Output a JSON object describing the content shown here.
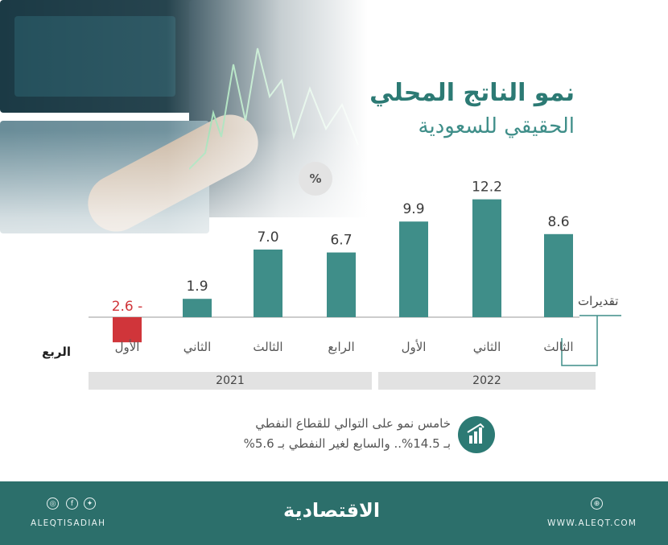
{
  "colors": {
    "bar": "#3f8e89",
    "negative_bar": "#d0353a",
    "title": "#2c7a74",
    "footer": "#2c6f6b",
    "negative_label": "#d0353a"
  },
  "title": {
    "line1": "نمو الناتج المحلي",
    "line2": "الحقيقي للسعودية"
  },
  "unit_badge": "%",
  "estimates_label": "تقديرات",
  "quarter_axis_title": "الربع",
  "years": [
    "2021",
    "2022"
  ],
  "note": {
    "line1": "خامس نمو على التوالي للقطاع النفطي",
    "line2": "بـ 14.5%.. والسابع لغير النفطي بـ 5.6%",
    "icon": "chart-growth-icon"
  },
  "footer": {
    "handle": "ALEQTISADIAH",
    "brand": "الاقتصادية",
    "website": "WWW.ALEQT.COM",
    "social_icons": [
      "instagram-icon",
      "facebook-icon",
      "twitter-icon"
    ],
    "web_icon": "globe-icon"
  },
  "chart_data": {
    "type": "bar",
    "title": "نمو الناتج المحلي الحقيقي للسعودية",
    "categories": [
      "الأول",
      "الثاني",
      "الثالث",
      "الرابع",
      "الأول",
      "الثاني",
      "الثالث"
    ],
    "years": [
      "2021",
      "2021",
      "2021",
      "2021",
      "2022",
      "2022",
      "2022"
    ],
    "values": [
      -2.6,
      1.9,
      7.0,
      6.7,
      9.9,
      12.2,
      8.6
    ],
    "value_labels": [
      "2.6 -",
      "1.9",
      "7.0",
      "6.7",
      "9.9",
      "12.2",
      "8.6"
    ],
    "estimated": [
      false,
      false,
      false,
      false,
      false,
      false,
      true
    ],
    "ylabel": "%",
    "xlabel": "الربع",
    "grid": false
  }
}
